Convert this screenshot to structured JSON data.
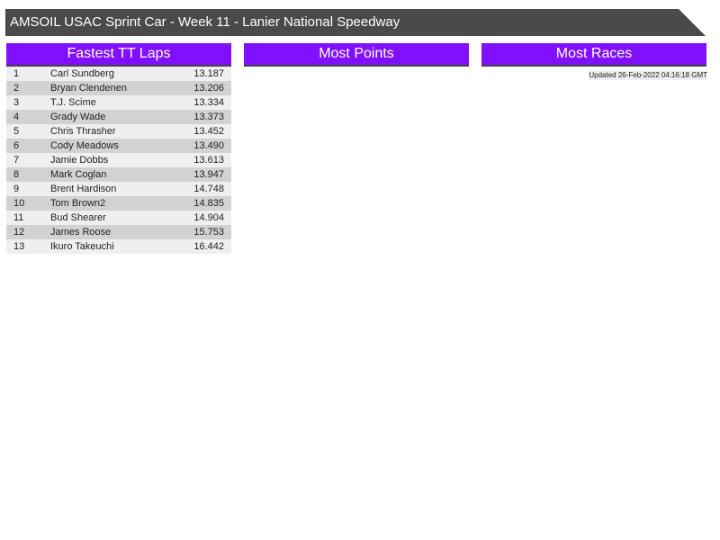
{
  "title": "AMSOIL USAC Sprint Car - Week 11 - Lanier National Speedway",
  "panels": {
    "fastest": "Fastest TT Laps",
    "points": "Most Points",
    "races": "Most Races"
  },
  "updated": "Updated 26-Feb-2022 04:16:18 GMT",
  "fastest_laps": [
    {
      "pos": "1",
      "name": "Carl Sundberg",
      "time": "13.187"
    },
    {
      "pos": "2",
      "name": "Bryan Clendenen",
      "time": "13.206"
    },
    {
      "pos": "3",
      "name": "T.J. Scime",
      "time": "13.334"
    },
    {
      "pos": "4",
      "name": "Grady Wade",
      "time": "13.373"
    },
    {
      "pos": "5",
      "name": "Chris Thrasher",
      "time": "13.452"
    },
    {
      "pos": "6",
      "name": "Cody Meadows",
      "time": "13.490"
    },
    {
      "pos": "7",
      "name": "Jamie Dobbs",
      "time": "13.613"
    },
    {
      "pos": "8",
      "name": "Mark Coglan",
      "time": "13.947"
    },
    {
      "pos": "9",
      "name": "Brent Hardison",
      "time": "14.748"
    },
    {
      "pos": "10",
      "name": "Tom Brown2",
      "time": "14.835"
    },
    {
      "pos": "11",
      "name": "Bud Shearer",
      "time": "14.904"
    },
    {
      "pos": "12",
      "name": "James Roose",
      "time": "15.753"
    },
    {
      "pos": "13",
      "name": "Ikuro Takeuchi",
      "time": "16.442"
    }
  ],
  "colors": {
    "header": "#8010ff",
    "title_bar": "#4a4a4a"
  }
}
